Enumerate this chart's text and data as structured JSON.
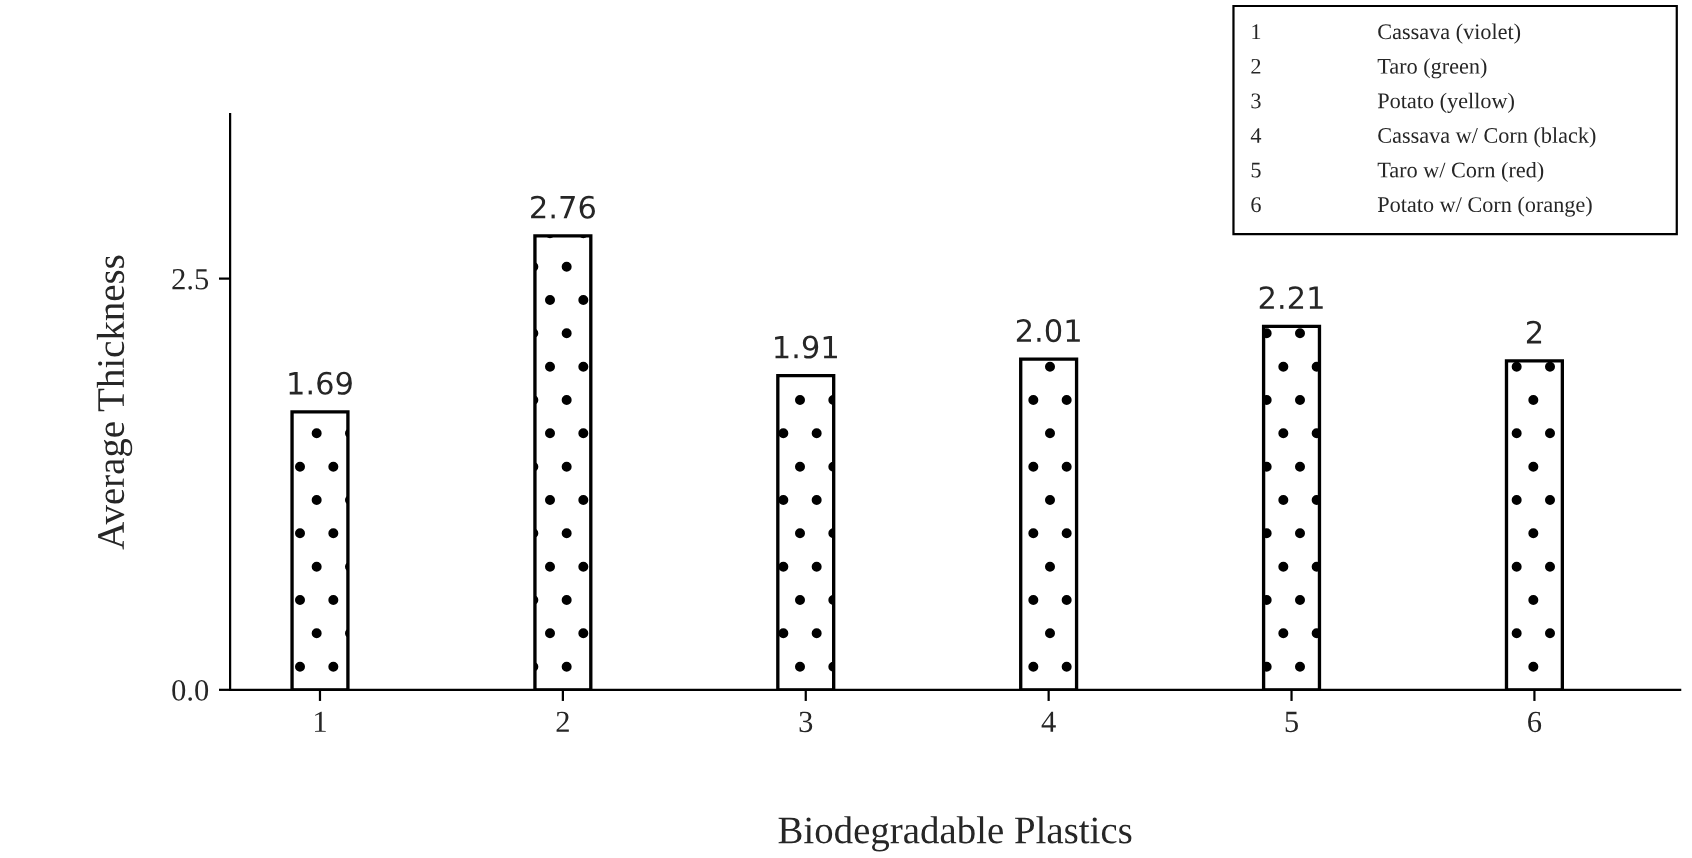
{
  "chart_data": {
    "type": "bar",
    "categories": [
      "1",
      "2",
      "3",
      "4",
      "5",
      "6"
    ],
    "values": [
      1.69,
      2.76,
      1.91,
      2.01,
      2.21,
      2
    ],
    "xlabel": "Biodegradable Plastics",
    "ylabel": "Average Thickness",
    "ylim": [
      0,
      3.5
    ],
    "yticks": [
      {
        "value": 0,
        "label": "0.0"
      },
      2.5
    ],
    "data_labels": true,
    "grid": false,
    "annotations": [
      "1 Cassava (violet)",
      "2 Taro (green)",
      "3 Potato (yellow)",
      "4 Cassava w/ Corn (black)",
      "5 Taro w/ Corn (red)",
      "6 Potato w/ Corn (orange)"
    ]
  }
}
